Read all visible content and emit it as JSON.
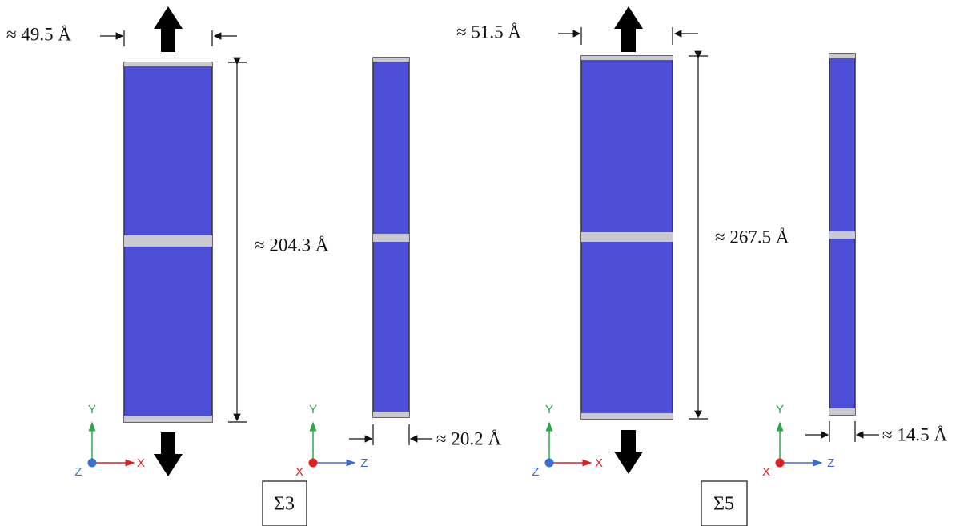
{
  "panels": [
    {
      "width_label": "≈ 49.5 Å",
      "height_label": "≈ 204.3 Å",
      "thickness_label": "≈ 20.2 Å",
      "label": "Σ3",
      "front_axes": {
        "y": "Y",
        "x": "X",
        "z": "Z"
      },
      "side_axes": {
        "y": "Y",
        "x": "X",
        "z": "Z"
      }
    },
    {
      "width_label": "≈ 51.5 Å",
      "height_label": "≈ 267.5 Å",
      "thickness_label": "≈ 14.5 Å",
      "label": "Σ5",
      "front_axes": {
        "y": "Y",
        "x": "X",
        "z": "Z"
      },
      "side_axes": {
        "y": "Y",
        "x": "X",
        "z": "Z"
      }
    }
  ]
}
